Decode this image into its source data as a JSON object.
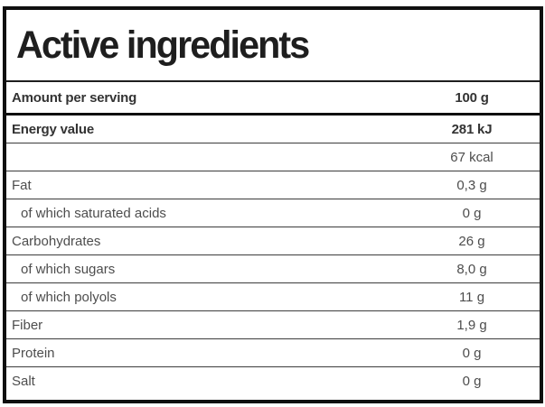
{
  "title": "Active ingredients",
  "colors": {
    "page-bg": "#ffffff",
    "border-strong": "#0f0f0f",
    "border-thin": "#3c3c3c",
    "title-color": "#1e1e1e",
    "bold-text": "#333333",
    "regular-text": "#4d4d4d"
  },
  "table": {
    "header": {
      "label": "Amount per serving",
      "value": "100 g"
    },
    "rows": [
      {
        "label": "Energy value",
        "value": "281 kJ",
        "style": "bold"
      },
      {
        "label": "",
        "value": "67 kcal",
        "style": "regular"
      },
      {
        "label": "Fat",
        "value": "0,3 g",
        "style": "regular"
      },
      {
        "label": "of which saturated acids",
        "value": "0 g",
        "style": "indent"
      },
      {
        "label": "Carbohydrates",
        "value": "26 g",
        "style": "regular"
      },
      {
        "label": "of which sugars",
        "value": "8,0 g",
        "style": "indent"
      },
      {
        "label": "of which polyols",
        "value": "11 g",
        "style": "indent"
      },
      {
        "label": "Fiber",
        "value": "1,9 g",
        "style": "regular"
      },
      {
        "label": "Protein",
        "value": "0 g",
        "style": "regular"
      },
      {
        "label": "Salt",
        "value": "0 g",
        "style": "regular"
      }
    ]
  },
  "chart_data": {
    "type": "table",
    "title": "Active ingredients",
    "columns": [
      "Amount per serving",
      "100 g"
    ],
    "rows": [
      [
        "Energy value",
        "281 kJ"
      ],
      [
        "",
        "67 kcal"
      ],
      [
        "Fat",
        "0,3 g"
      ],
      [
        "of which saturated acids",
        "0 g"
      ],
      [
        "Carbohydrates",
        "26 g"
      ],
      [
        "of which sugars",
        "8,0 g"
      ],
      [
        "of which polyols",
        "11 g"
      ],
      [
        "Fiber",
        "1,9 g"
      ],
      [
        "Protein",
        "0 g"
      ],
      [
        "Salt",
        "0 g"
      ]
    ]
  }
}
